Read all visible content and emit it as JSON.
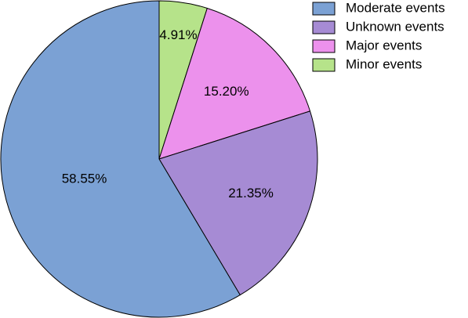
{
  "chart_data": {
    "type": "pie",
    "title": "",
    "legend_position": "top-right",
    "slices": [
      {
        "label": "Minor events",
        "value": 4.91,
        "display": "4.91%",
        "color": "#b6e38a"
      },
      {
        "label": "Major events",
        "value": 15.2,
        "display": "15.20%",
        "color": "#ec91ec"
      },
      {
        "label": "Unknown events",
        "value": 21.35,
        "display": "21.35%",
        "color": "#a68bd4"
      },
      {
        "label": "Moderate events",
        "value": 58.55,
        "display": "58.55%",
        "color": "#7ba1d4"
      }
    ],
    "legend_order": [
      "Moderate events",
      "Unknown events",
      "Major events",
      "Minor events"
    ],
    "start_angle": "12 o'clock",
    "direction": "clockwise"
  }
}
